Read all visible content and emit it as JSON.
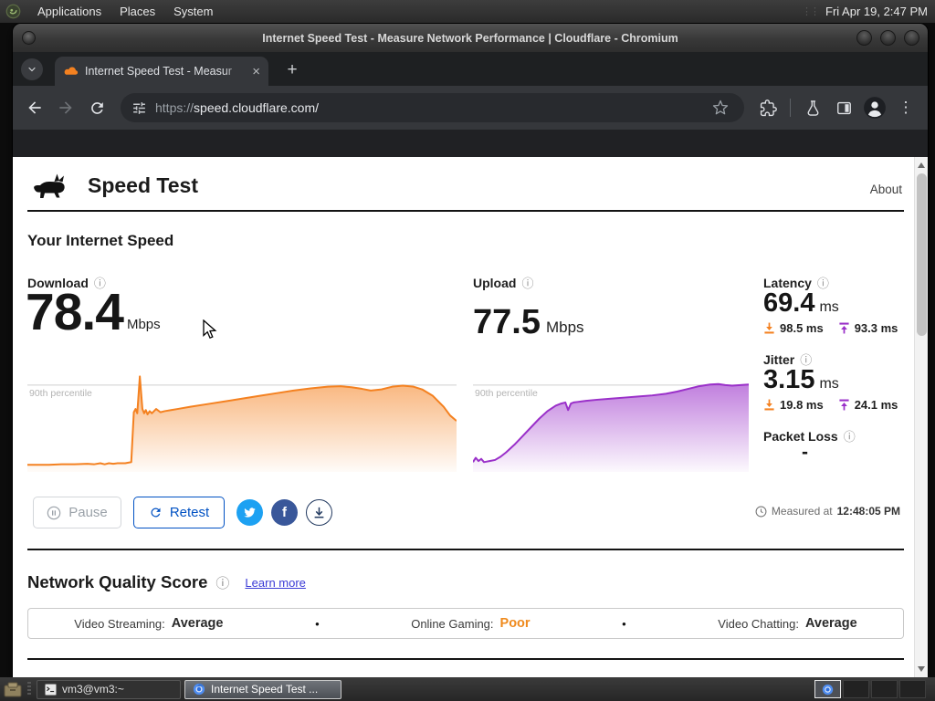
{
  "desktop": {
    "panel": {
      "menus": [
        "Applications",
        "Places",
        "System"
      ],
      "clock": "Fri Apr 19, 2:47 PM"
    },
    "taskbar": {
      "items": [
        {
          "label": "vm3@vm3:~"
        },
        {
          "label": "Internet Speed Test ..."
        }
      ]
    }
  },
  "window": {
    "title": "Internet Speed Test - Measure Network Performance | Cloudflare - Chromium"
  },
  "browser": {
    "tab_title": "Internet Speed Test - Measur",
    "url": {
      "scheme": "https://",
      "rest": "speed.cloudflare.com/",
      "full": "https://speed.cloudflare.com/"
    }
  },
  "icons": {
    "info": "ⓘ",
    "tab_close": "×",
    "new_tab": "+",
    "overflow_menu": "⋮",
    "facebook_f": "f",
    "bullet": "•"
  },
  "page": {
    "brand": "Speed Test",
    "about": "About",
    "section_title": "Your Internet Speed",
    "download": {
      "label": "Download",
      "value": "78.4",
      "unit": "Mbps"
    },
    "upload": {
      "label": "Upload",
      "value": "77.5",
      "unit": "Mbps"
    },
    "latency": {
      "label": "Latency",
      "value": "69.4",
      "unit": "ms",
      "down": "98.5 ms",
      "up": "93.3 ms"
    },
    "jitter": {
      "label": "Jitter",
      "value": "3.15",
      "unit": "ms",
      "down": "19.8 ms",
      "up": "24.1 ms"
    },
    "packet_loss": {
      "label": "Packet Loss",
      "value": "-"
    },
    "percentile_label": "90th percentile",
    "buttons": {
      "pause": "Pause",
      "retest": "Retest"
    },
    "measured": {
      "prefix": "Measured at",
      "time": "12:48:05 PM"
    },
    "quality": {
      "title": "Network Quality Score",
      "learn_more": "Learn more",
      "items": [
        {
          "label": "Video Streaming:",
          "value": "Average",
          "color": "#2b2b2b"
        },
        {
          "label": "Online Gaming:",
          "value": "Poor",
          "color": "#ef8a1d"
        },
        {
          "label": "Video Chatting:",
          "value": "Average",
          "color": "#2b2b2b"
        }
      ]
    },
    "colors": {
      "download_orange": "#f48120",
      "upload_purple": "#9a30c9",
      "accent_blue": "#0051c3",
      "twitter_blue": "#1da1f2",
      "facebook_blue": "#39579a"
    }
  },
  "chart_data": [
    {
      "type": "area",
      "name": "download",
      "title": "Download speed over test duration",
      "xlabel": "test progress (0-1, axis unlabeled)",
      "ylabel": "Mbps (axis unlabeled, values estimated)",
      "ylim": [
        0,
        90
      ],
      "percentile_line": 80,
      "annotations": [
        "90th percentile"
      ],
      "color": "#f48120",
      "x": [
        0,
        0.02,
        0.05,
        0.08,
        0.11,
        0.14,
        0.155,
        0.17,
        0.18,
        0.19,
        0.2,
        0.21,
        0.22,
        0.228,
        0.235,
        0.242,
        0.248,
        0.252,
        0.256,
        0.262,
        0.268,
        0.272,
        0.276,
        0.28,
        0.285,
        0.29,
        0.3,
        0.31,
        0.32,
        0.335,
        0.35,
        0.38,
        0.42,
        0.46,
        0.5,
        0.54,
        0.58,
        0.62,
        0.66,
        0.7,
        0.73,
        0.755,
        0.78,
        0.8,
        0.825,
        0.85,
        0.875,
        0.9,
        0.92,
        0.945,
        0.97,
        0.985,
        1
      ],
      "y": [
        6.5,
        6.5,
        6.5,
        7,
        7,
        7.5,
        7,
        8,
        7,
        8,
        7.5,
        8,
        8,
        8,
        8.5,
        9,
        55,
        58,
        54,
        88,
        58,
        54,
        57,
        53,
        56,
        54,
        58,
        55,
        56,
        57,
        58,
        60,
        62.5,
        65,
        67.5,
        70,
        72.5,
        75,
        77,
        78.5,
        79,
        78,
        76.5,
        75,
        76,
        78.5,
        79.5,
        78.5,
        76,
        70,
        60,
        52,
        47
      ]
    },
    {
      "type": "area",
      "name": "upload",
      "title": "Upload speed over test duration",
      "xlabel": "test progress (0-1, axis unlabeled)",
      "ylabel": "Mbps (axis unlabeled, values estimated)",
      "ylim": [
        0,
        90
      ],
      "percentile_line": 80,
      "annotations": [
        "90th percentile"
      ],
      "color": "#9a30c9",
      "x": [
        0,
        0.01,
        0.02,
        0.03,
        0.04,
        0.05,
        0.06,
        0.08,
        0.1,
        0.12,
        0.15,
        0.18,
        0.21,
        0.24,
        0.27,
        0.3,
        0.32,
        0.335,
        0.345,
        0.355,
        0.365,
        0.38,
        0.41,
        0.45,
        0.5,
        0.55,
        0.6,
        0.65,
        0.7,
        0.74,
        0.78,
        0.82,
        0.86,
        0.89,
        0.915,
        0.94,
        0.97,
        1
      ],
      "y": [
        9,
        13,
        10,
        12,
        9,
        9.5,
        10,
        11,
        14,
        18,
        25,
        33,
        41,
        49,
        56,
        61,
        63,
        64,
        57,
        63,
        64,
        64.5,
        65.5,
        66.5,
        67.5,
        68.5,
        69.5,
        70.5,
        72,
        74,
        76.5,
        79,
        80.5,
        81,
        80,
        79.5,
        80,
        80.5
      ]
    }
  ]
}
